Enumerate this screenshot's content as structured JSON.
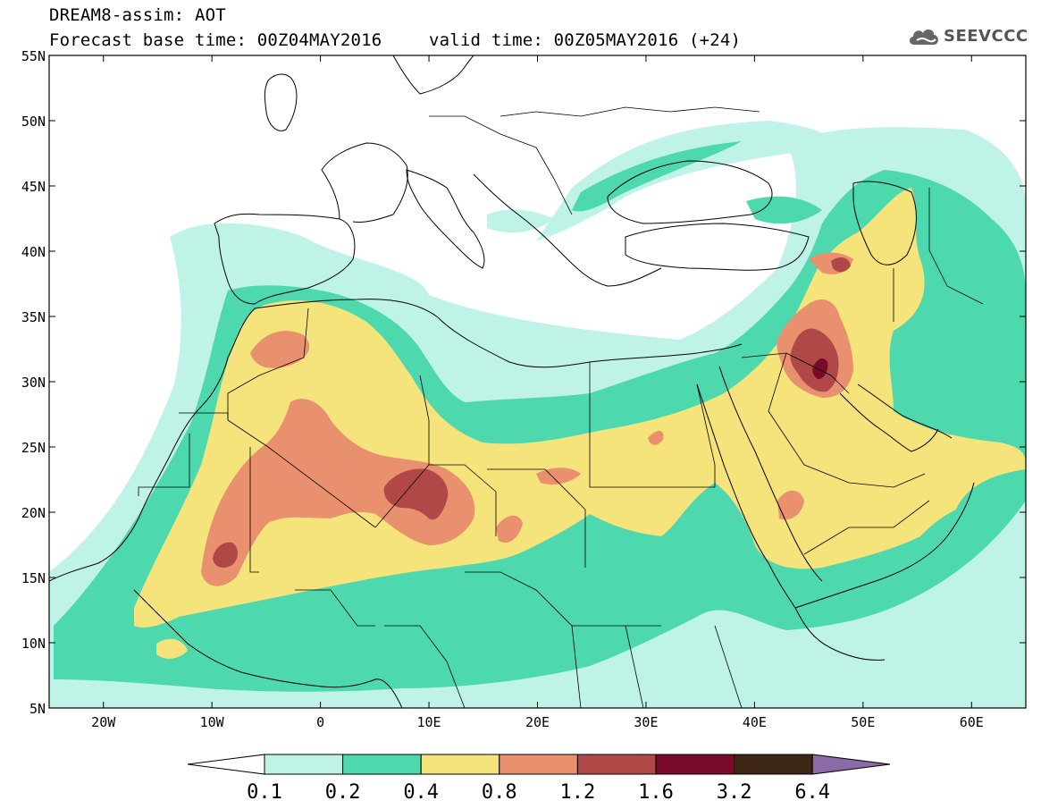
{
  "title": {
    "line1": "DREAM8-assim: AOT",
    "base_time": "Forecast base time: 00Z04MAY2016",
    "valid_time": "valid time: 00Z05MAY2016 (+24)"
  },
  "logo": {
    "text": "SEEVCCC",
    "icon": "cloud-logo-icon"
  },
  "map": {
    "lat_ticks": [
      "55N",
      "50N",
      "45N",
      "40N",
      "35N",
      "30N",
      "25N",
      "20N",
      "15N",
      "10N",
      "5N"
    ],
    "lon_ticks": [
      "20W",
      "10W",
      "0",
      "10E",
      "20E",
      "30E",
      "40E",
      "50E",
      "60E"
    ],
    "lon_range": [
      -25,
      65
    ],
    "lat_range": [
      5,
      55
    ]
  },
  "colorbar": {
    "levels": [
      "0.1",
      "0.2",
      "0.4",
      "0.8",
      "1.2",
      "1.6",
      "3.2",
      "6.4"
    ],
    "colors": {
      "lt01": "#ffffff",
      "b01_02": "#bff3e8",
      "b02_04": "#4dd8ae",
      "b04_08": "#f5e37c",
      "b08_12": "#e9906e",
      "b12_16": "#b04848",
      "b16_32": "#7a0a2a",
      "b32_64": "#3e2614",
      "gt64": "#8b6aa8"
    }
  }
}
